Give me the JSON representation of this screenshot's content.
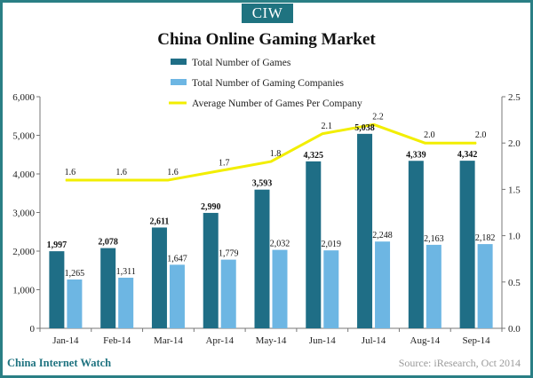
{
  "logo": "CIW",
  "footer": {
    "brand": "China Internet Watch",
    "source": "Source: iResearch, Oct 2014"
  },
  "colors": {
    "games": "#1f6e86",
    "companies": "#6db6e3",
    "average": "#f2ee00",
    "frame": "#2a7f85"
  },
  "chart_data": {
    "type": "bar",
    "title": "China Online Gaming Market",
    "categories": [
      "Jan-14",
      "Feb-14",
      "Mar-14",
      "Apr-14",
      "May-14",
      "Jun-14",
      "Jul-14",
      "Aug-14",
      "Sep-14"
    ],
    "series": [
      {
        "name": "Total Number of Games",
        "type": "bar",
        "axis": "left",
        "values": [
          1997,
          2078,
          2611,
          2990,
          3593,
          4325,
          5038,
          4339,
          4342
        ],
        "labels": [
          "1,997",
          "2,078",
          "2,611",
          "2,990",
          "3,593",
          "4,325",
          "5,038",
          "4,339",
          "4,342"
        ]
      },
      {
        "name": "Total Number of Gaming Companies",
        "type": "bar",
        "axis": "left",
        "values": [
          1265,
          1311,
          1647,
          1779,
          2032,
          2019,
          2248,
          2163,
          2182
        ],
        "labels": [
          "1,265",
          "1,311",
          "1,647",
          "1,779",
          "2,032",
          "2,019",
          "2,248",
          "2,163",
          "2,182"
        ]
      },
      {
        "name": "Average Number of Games Per Company",
        "type": "line",
        "axis": "right",
        "values": [
          1.6,
          1.6,
          1.6,
          1.7,
          1.8,
          2.1,
          2.2,
          2.0,
          2.0
        ],
        "labels": [
          "1.6",
          "1.6",
          "1.6",
          "1.7",
          "1.8",
          "2.1",
          "2.2",
          "2.0",
          "2.0"
        ]
      }
    ],
    "ylim_left": [
      0,
      6000
    ],
    "yticks_left": [
      "0",
      "1,000",
      "2,000",
      "3,000",
      "4,000",
      "5,000",
      "6,000"
    ],
    "ylim_right": [
      0,
      2.5
    ],
    "yticks_right": [
      "0.0",
      "0.5",
      "1.0",
      "1.5",
      "2.0",
      "2.5"
    ],
    "legend_position": "top-center",
    "grid": false
  }
}
